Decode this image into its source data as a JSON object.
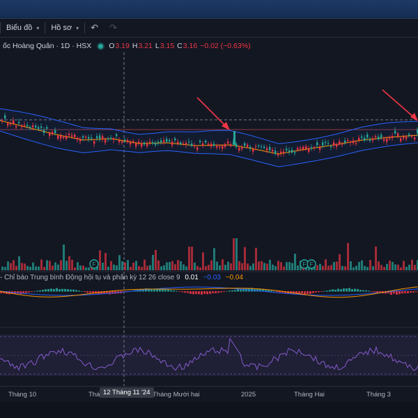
{
  "toolbar": {
    "chart_label": "Biểu đồ",
    "profile_label": "Hồ sơ",
    "undo_icon": "undo-icon",
    "redo_icon": "redo-icon"
  },
  "legend": {
    "symbol": "ốc Hoàng Quân · 1D · HSX",
    "o_label": "O",
    "o_value": "3.19",
    "h_label": "H",
    "h_value": "3.21",
    "l_label": "L",
    "l_value": "3.15",
    "c_label": "C",
    "c_value": "3.16",
    "change": "−0.02 (−0.63%)",
    "status_color": "#26a69a"
  },
  "macd": {
    "title": "- Chỉ báo Trung bình Động hội tụ và phân kỳ",
    "params": "12 26 close 9",
    "v1": "0.01",
    "v2": "−0.03",
    "v3": "−0.04"
  },
  "markers": {
    "volume_badge": "F"
  },
  "time_axis": {
    "labels": [
      "Tháng 10",
      "Thá",
      "Tháng Mười hai",
      "2025",
      "Tháng Hai",
      "Tháng 3"
    ],
    "crosshair_date": "12 Tháng 11 '24"
  },
  "colors": {
    "up": "#26a69a",
    "down": "#f23645",
    "bb": "#2962ff",
    "ma": "#ff9800",
    "rsi": "#7e57c2",
    "arrows": "#f23645"
  }
}
